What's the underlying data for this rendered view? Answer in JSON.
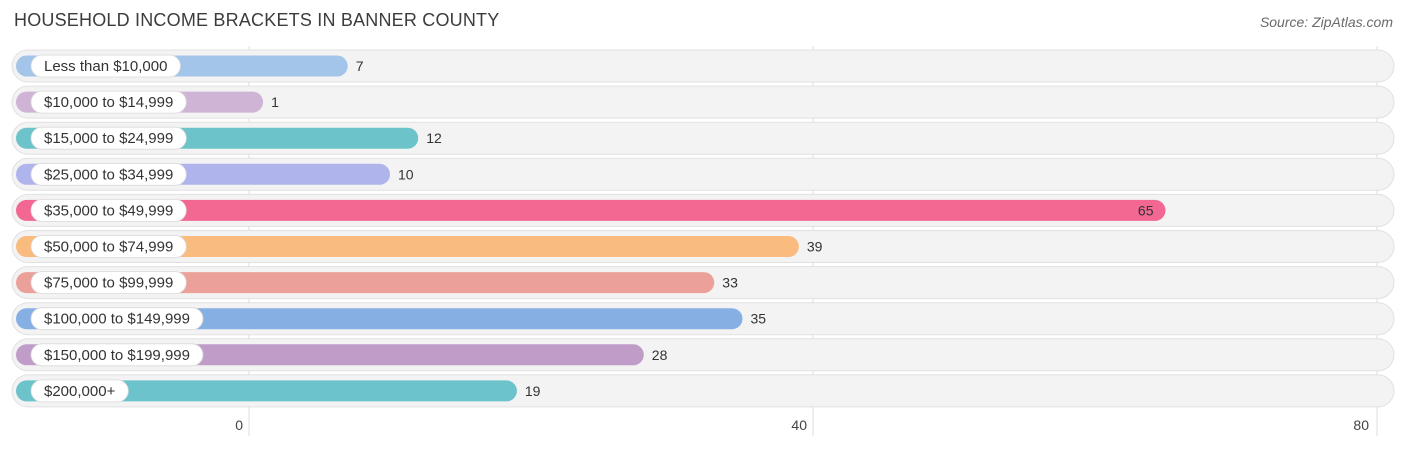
{
  "title": "HOUSEHOLD INCOME BRACKETS IN BANNER COUNTY",
  "source": "Source: ZipAtlas.com",
  "chart_data": {
    "type": "bar",
    "orientation": "horizontal",
    "categories": [
      "Less than $10,000",
      "$10,000 to $14,999",
      "$15,000 to $24,999",
      "$25,000 to $34,999",
      "$35,000 to $49,999",
      "$50,000 to $74,999",
      "$75,000 to $99,999",
      "$100,000 to $149,999",
      "$150,000 to $199,999",
      "$200,000+"
    ],
    "values": [
      7,
      1,
      12,
      10,
      65,
      39,
      33,
      35,
      28,
      19
    ],
    "colors": [
      "#a4c5ea",
      "#d0b4d6",
      "#6cc3c9",
      "#b0b4ec",
      "#f26892",
      "#f9bb7e",
      "#eba19a",
      "#86b0e4",
      "#c09cc9",
      "#6cc3cb"
    ],
    "xlim": [
      0,
      80
    ],
    "ticks": [
      "0",
      "40",
      "80"
    ],
    "grid": true
  }
}
